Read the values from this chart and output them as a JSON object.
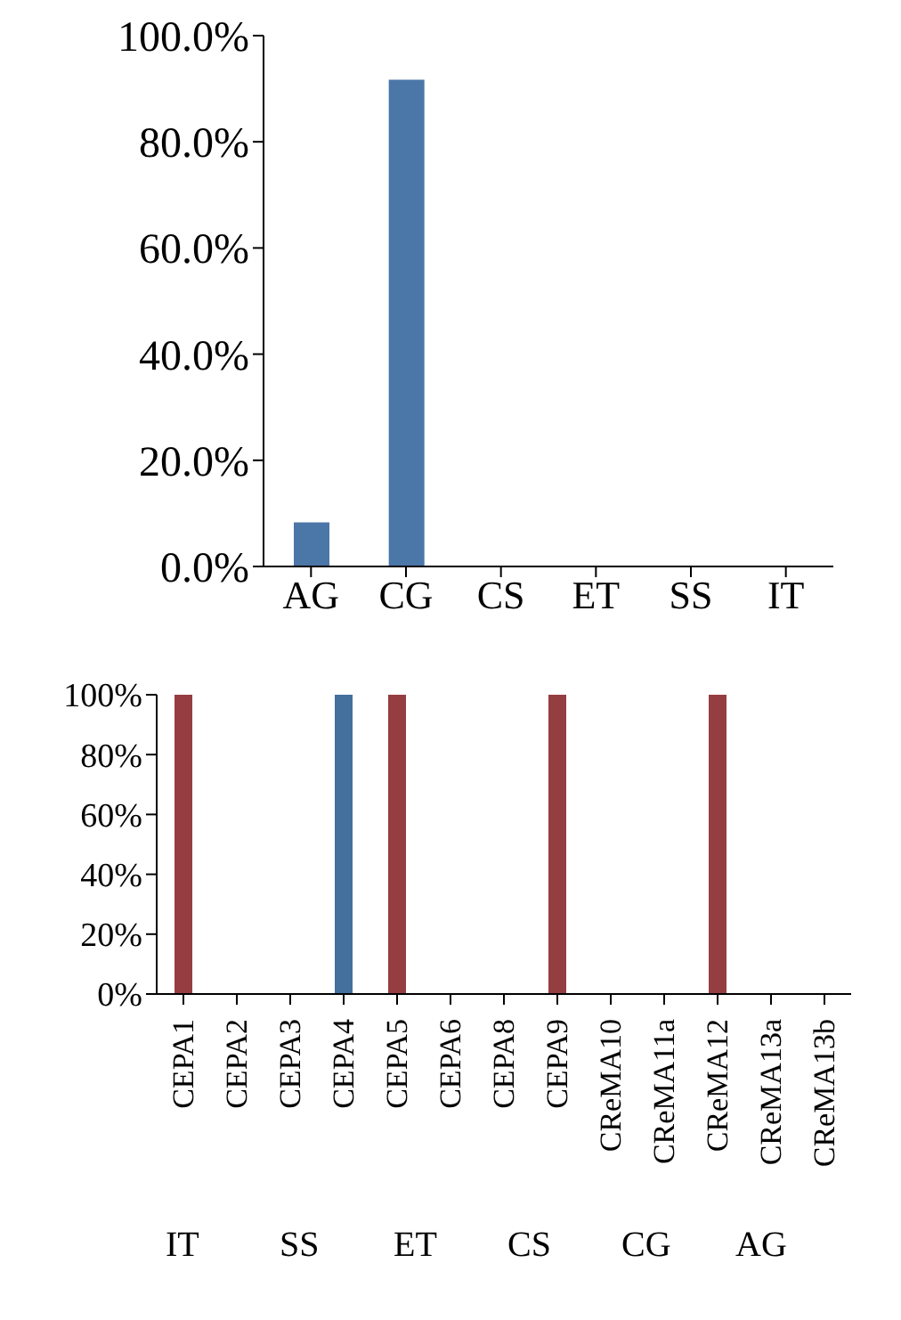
{
  "chart_data": [
    {
      "type": "bar",
      "categories": [
        "AG",
        "CG",
        "CS",
        "ET",
        "SS",
        "IT"
      ],
      "values": [
        8.3,
        91.7,
        0,
        0,
        0,
        0
      ],
      "color": "#4a76a8",
      "ylim": [
        0,
        100
      ],
      "yticks": [
        {
          "value": 0,
          "label": "0.0%"
        },
        {
          "value": 20,
          "label": "20.0%"
        },
        {
          "value": 40,
          "label": "40.0%"
        },
        {
          "value": 60,
          "label": "60.0%"
        },
        {
          "value": 80,
          "label": "80.0%"
        },
        {
          "value": 100,
          "label": "100.0%"
        }
      ],
      "grid": false,
      "legend": false
    },
    {
      "type": "bar",
      "categories": [
        "CEPA1",
        "CEPA2",
        "CEPA3",
        "CEPA4",
        "CEPA5",
        "CEPA6",
        "CEPA8",
        "CEPA9",
        "CReMA10",
        "CReMA11a",
        "CReMA12",
        "CReMA13a",
        "CReMA13b"
      ],
      "values": [
        100,
        0,
        0,
        100,
        100,
        0,
        0,
        100,
        0,
        0,
        100,
        0,
        0
      ],
      "colors": [
        "#953e42",
        "#b0703a",
        "#b0703a",
        "#44709e",
        "#953e42",
        "#b0703a",
        "#b0703a",
        "#953e42",
        "#b0703a",
        "#b0703a",
        "#953e42",
        "#b0703a",
        "#b0703a"
      ],
      "ylim": [
        0,
        100
      ],
      "yticks": [
        {
          "value": 0,
          "label": "0%"
        },
        {
          "value": 20,
          "label": "20%"
        },
        {
          "value": 40,
          "label": "40%"
        },
        {
          "value": 60,
          "label": "60%"
        },
        {
          "value": 80,
          "label": "80%"
        },
        {
          "value": 100,
          "label": "100%"
        }
      ],
      "grid": false,
      "legend": false,
      "annotations": [
        "IT",
        "SS",
        "ET",
        "CS",
        "CG",
        "AG"
      ]
    }
  ]
}
